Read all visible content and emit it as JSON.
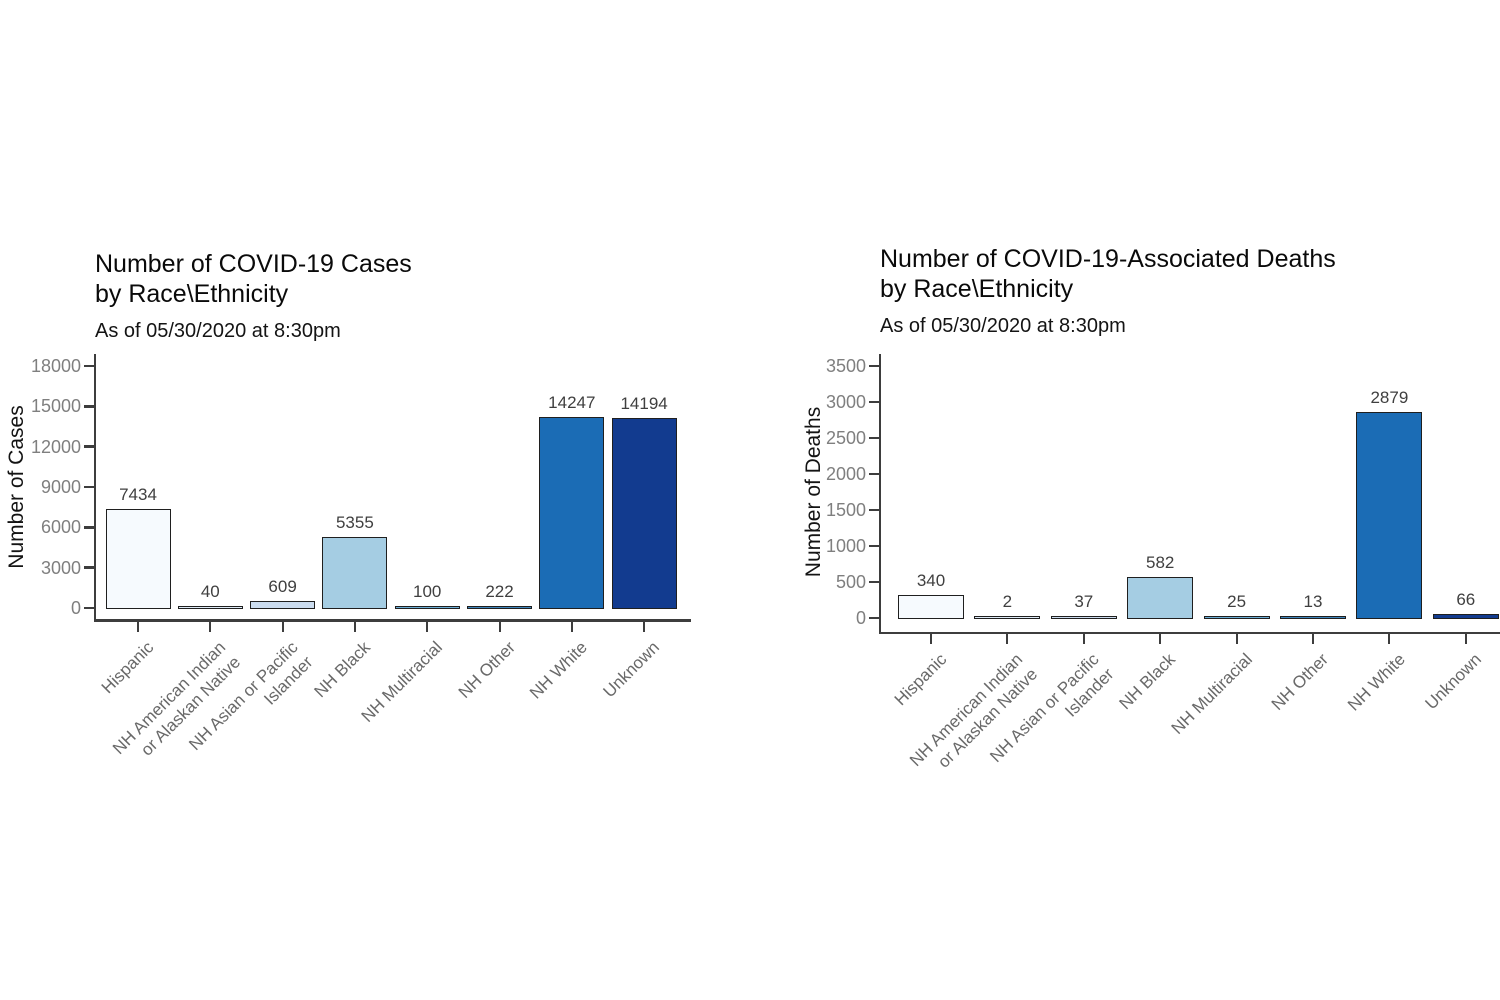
{
  "page": {
    "background": "#ffffff",
    "description_note": "Two bar charts of Connecticut COVID-19 data by race/ethnicity"
  },
  "chart_data": [
    {
      "type": "bar",
      "title_lines": [
        "Number of COVID-19 Cases",
        "by Race\\Ethnicity"
      ],
      "subtitle": "As of 05/30/2020 at 8:30pm",
      "xlabel": "",
      "ylabel": "Number of Cases",
      "categories": [
        "Hispanic",
        "NH American Indian\nor Alaskan Native",
        "NH Asian or Pacific\nIslander",
        "NH Black",
        "NH Multiracial",
        "NH Other",
        "NH White",
        "Unknown"
      ],
      "values": [
        7434,
        40,
        609,
        5355,
        100,
        222,
        14247,
        14194
      ],
      "value_labels": [
        "7434",
        "40",
        "609",
        "5355",
        "100",
        "222",
        "14247",
        "14194"
      ],
      "ylim": [
        0,
        18000
      ],
      "yticks": [
        0,
        3000,
        6000,
        9000,
        12000,
        15000,
        18000
      ],
      "ytick_labels": [
        "0",
        "3000",
        "6000",
        "9000",
        "12000",
        "15000",
        "18000"
      ],
      "bar_colors": [
        "#F6FAFE",
        "#DEEBF7",
        "#CBDCEF",
        "#A5CDE3",
        "#6BAED6",
        "#3E86BD",
        "#1B6CB5",
        "#123B8F"
      ],
      "bar_outline": "#1F1F1F",
      "grid": false,
      "legend": "none"
    },
    {
      "type": "bar",
      "title_lines": [
        "Number of COVID-19-Associated Deaths",
        "by Race\\Ethnicity"
      ],
      "subtitle": "As of 05/30/2020 at 8:30pm",
      "xlabel": "",
      "ylabel": "Number of Deaths",
      "categories": [
        "Hispanic",
        "NH American Indian\nor Alaskan Native",
        "NH Asian or Pacific\nIslander",
        "NH Black",
        "NH Multiracial",
        "NH Other",
        "NH White",
        "Unknown"
      ],
      "values": [
        340,
        2,
        37,
        582,
        25,
        13,
        2879,
        66
      ],
      "value_labels": [
        "340",
        "2",
        "37",
        "582",
        "25",
        "13",
        "2879",
        "66"
      ],
      "ylim": [
        0,
        3500
      ],
      "yticks": [
        0,
        500,
        1000,
        1500,
        2000,
        2500,
        3000,
        3500
      ],
      "ytick_labels": [
        "0",
        "500",
        "1000",
        "1500",
        "2000",
        "2500",
        "3000",
        "3500"
      ],
      "bar_colors": [
        "#F6FAFE",
        "#DEEBF7",
        "#CBDCEF",
        "#A5CDE3",
        "#6BAED6",
        "#3E86BD",
        "#1B6CB5",
        "#123B8F"
      ],
      "bar_outline": "#1F1F1F",
      "grid": false,
      "legend": "none"
    }
  ]
}
